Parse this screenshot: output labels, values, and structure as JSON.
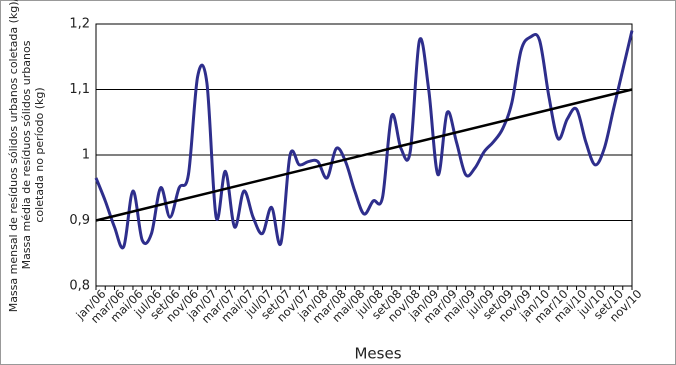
{
  "chart_data": {
    "type": "line",
    "ylabel": [
      "Massa mensal de resíduos sólidos urbanos coletada (kg)/",
      "Massa média de resíduos sólidos urbanos",
      "coletada no período (kg)"
    ],
    "xlabel": "Meses",
    "categories": [
      "jan/06",
      null,
      "mar/06",
      null,
      "mai/06",
      null,
      "jul/06",
      null,
      "set/06",
      null,
      "nov/06",
      null,
      "jan/07",
      null,
      "mar/07",
      null,
      "mai/07",
      null,
      "jul/07",
      null,
      "set/07",
      null,
      "nov/07",
      null,
      "jan/08",
      null,
      "mar/08",
      null,
      "mai/08",
      null,
      "jul/08",
      null,
      "set/08",
      null,
      "nov/08",
      null,
      "jan/09",
      null,
      "mar/09",
      null,
      "mai/09",
      null,
      "jul/09",
      null,
      "set/09",
      null,
      "nov/09",
      null,
      "jan/10",
      null,
      "mar/10",
      null,
      "mai/10",
      null,
      "jul/10",
      null,
      "set/10",
      null,
      "nov/10"
    ],
    "series": [
      {
        "color": "#2e2e8c",
        "values": [
          0.965,
          0.93,
          0.89,
          0.86,
          0.945,
          0.87,
          0.88,
          0.95,
          0.905,
          0.95,
          0.97,
          1.12,
          1.11,
          0.905,
          0.975,
          0.89,
          0.945,
          0.905,
          0.88,
          0.92,
          0.865,
          1.0,
          0.985,
          0.99,
          0.99,
          0.965,
          1.01,
          0.99,
          0.945,
          0.91,
          0.93,
          0.935,
          1.06,
          1.01,
          1.005,
          1.175,
          1.1,
          0.97,
          1.065,
          1.02,
          0.97,
          0.98,
          1.005,
          1.02,
          1.04,
          1.08,
          1.16,
          1.18,
          1.175,
          1.09,
          1.025,
          1.055,
          1.07,
          1.02,
          0.985,
          1.01,
          1.07,
          1.13,
          1.19
        ]
      }
    ],
    "trend": {
      "color": "#000000",
      "start": 0.9,
      "end": 1.1
    },
    "ylim": [
      0.8,
      1.2
    ],
    "yticks": [
      {
        "value": 0.8,
        "label": "0,8"
      },
      {
        "value": 0.9,
        "label": "0,9"
      },
      1,
      {
        "value": 1.1,
        "label": "1,1"
      },
      {
        "value": 1.2,
        "label": "1,2"
      }
    ],
    "grid": true
  }
}
